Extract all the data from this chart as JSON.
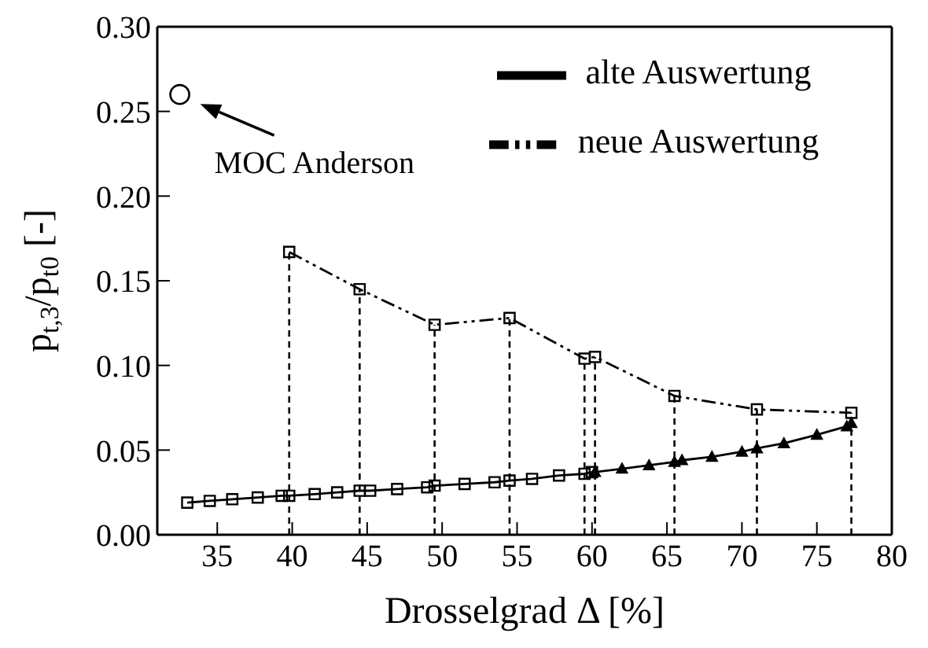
{
  "chart_data": {
    "type": "line",
    "xlabel": "Drosselgrad Δ [%]",
    "ylabel": "p$_{t,3}$/p$_{t0}$ [-]",
    "xlim": [
      31,
      80
    ],
    "xticks": [
      35,
      40,
      45,
      50,
      55,
      60,
      65,
      70,
      75,
      80
    ],
    "ylim": [
      0,
      0.3
    ],
    "yticks": [
      {
        "value": 0,
        "label": "0.00"
      },
      0.05,
      {
        "value": 0.1,
        "label": "0.10"
      },
      0.15,
      {
        "value": 0.2,
        "label": "0.20"
      },
      0.25,
      {
        "value": 0.3,
        "label": "0.30"
      }
    ],
    "grid": false,
    "legend": "top right",
    "series": [
      {
        "name": "alte Auswertung",
        "color": "#000000",
        "marker": "square",
        "line_style": "solid",
        "x": [
          33,
          34.5,
          36,
          37.7,
          39.3,
          39.8,
          41.5,
          43,
          44.5,
          45.2,
          47,
          49,
          49.5,
          51.5,
          53.5,
          54.5,
          56,
          57.8,
          59.5,
          60
        ],
        "values": [
          0.019,
          0.02,
          0.021,
          0.022,
          0.023,
          0.023,
          0.024,
          0.025,
          0.026,
          0.026,
          0.027,
          0.028,
          0.029,
          0.03,
          0.031,
          0.032,
          0.033,
          0.035,
          0.036,
          0.037
        ]
      },
      {
        "color": "#000000",
        "marker": "triangle",
        "line_style": "solid",
        "x": [
          60.2,
          62,
          63.8,
          65.5,
          66,
          68,
          70,
          71,
          72.8,
          75,
          77,
          77.3
        ],
        "values": [
          0.037,
          0.039,
          0.041,
          0.043,
          0.044,
          0.046,
          0.049,
          0.051,
          0.054,
          0.059,
          0.064,
          0.066
        ]
      },
      {
        "name": "neue Auswertung",
        "color": "#000000",
        "marker": "square",
        "line_style": "dashed",
        "x": [
          39.8,
          44.5,
          49.5,
          54.5,
          59.5,
          60.2,
          65.5,
          71,
          77.3
        ],
        "values": [
          0.167,
          0.145,
          0.124,
          0.128,
          0.104,
          0.105,
          0.082,
          0.074,
          0.072
        ]
      },
      {
        "type": "scatter",
        "color": "#000000",
        "marker": "circle",
        "x": [
          32.5
        ],
        "values": [
          0.26
        ]
      }
    ],
    "ref_lines": [
      {
        "axis": "x",
        "value": 39.8,
        "line_style": "dashed"
      },
      {
        "axis": "x",
        "value": 44.5,
        "line_style": "dashed"
      },
      {
        "axis": "x",
        "value": 49.5,
        "line_style": "dashed"
      },
      {
        "axis": "x",
        "value": 54.5,
        "line_style": "dashed"
      },
      {
        "axis": "x",
        "value": 59.5,
        "line_style": "dashed"
      },
      {
        "axis": "x",
        "value": 60.2,
        "line_style": "dashed"
      },
      {
        "axis": "x",
        "value": 65.5,
        "line_style": "dashed"
      },
      {
        "axis": "x",
        "value": 71,
        "line_style": "dashed"
      },
      {
        "axis": "x",
        "value": 77.3,
        "line_style": "dashed"
      }
    ],
    "annotations": [
      {
        "text": "MOC Anderson",
        "x": 32.5,
        "y": 0.26
      }
    ]
  }
}
